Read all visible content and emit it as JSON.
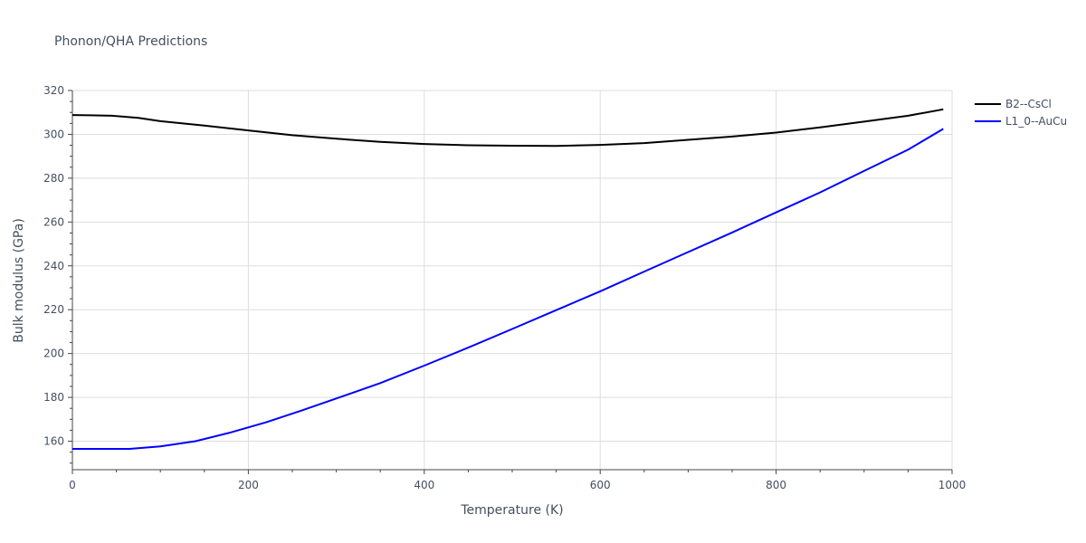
{
  "chart_data": {
    "type": "line",
    "title": "Phonon/QHA Predictions",
    "xlabel": "Temperature (K)",
    "ylabel": "Bulk modulus (GPa)",
    "xlim": [
      0,
      1000
    ],
    "ylim": [
      147,
      320
    ],
    "x_ticks": [
      0,
      200,
      400,
      600,
      800,
      1000
    ],
    "y_ticks": [
      160,
      180,
      200,
      220,
      240,
      260,
      280,
      300,
      320
    ],
    "grid": true,
    "legend_position": "top-right",
    "series": [
      {
        "name": "B2--CsCl",
        "color": "#000000",
        "x": [
          0,
          20,
          45,
          75,
          100,
          150,
          200,
          250,
          300,
          350,
          400,
          450,
          500,
          550,
          600,
          650,
          700,
          750,
          800,
          850,
          900,
          950,
          990
        ],
        "y": [
          308.8,
          308.7,
          308.5,
          307.5,
          306.0,
          304.0,
          301.8,
          299.6,
          298.0,
          296.6,
          295.6,
          295.0,
          294.8,
          294.7,
          295.2,
          296.0,
          297.5,
          299.0,
          300.8,
          303.2,
          305.8,
          308.5,
          311.4
        ]
      },
      {
        "name": "L1_0--AuCu",
        "color": "#0000ff",
        "x": [
          0,
          30,
          65,
          100,
          140,
          180,
          220,
          260,
          300,
          350,
          400,
          450,
          500,
          550,
          600,
          650,
          700,
          750,
          800,
          850,
          900,
          950,
          990
        ],
        "y": [
          156.5,
          156.5,
          156.5,
          157.6,
          160.0,
          164.0,
          168.6,
          173.9,
          179.5,
          186.5,
          194.5,
          202.7,
          211.2,
          219.8,
          228.4,
          237.4,
          246.3,
          255.2,
          264.4,
          273.5,
          283.3,
          293.0,
          302.5
        ]
      }
    ]
  }
}
